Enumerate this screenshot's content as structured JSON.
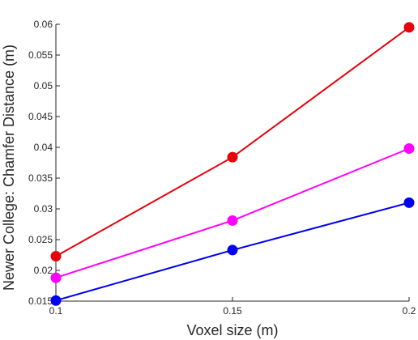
{
  "chart_data": {
    "type": "line",
    "title": "",
    "xlabel": "Voxel size (m)",
    "ylabel": "Newer College: Chamfer Distance (m)",
    "x": [
      0.1,
      0.15,
      0.2
    ],
    "xlim": [
      0.1,
      0.2
    ],
    "ylim": [
      0.015,
      0.06
    ],
    "xticks": [
      "0.1",
      "0.15",
      "0.2"
    ],
    "yticks": [
      "0.015",
      "0.02",
      "0.025",
      "0.03",
      "0.035",
      "0.04",
      "0.045",
      "0.05",
      "0.055",
      "0.06"
    ],
    "grid": false,
    "legend": "none",
    "series": [
      {
        "color": "#e8000b",
        "values": [
          0.0223,
          0.0384,
          0.0595
        ]
      },
      {
        "color": "#ff00ff",
        "values": [
          0.0188,
          0.0281,
          0.0398
        ]
      },
      {
        "color": "#0000ee",
        "values": [
          0.0151,
          0.0233,
          0.031
        ]
      }
    ]
  }
}
